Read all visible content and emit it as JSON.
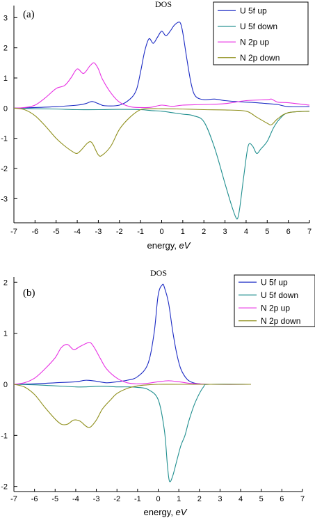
{
  "chart_data": [
    {
      "type": "line",
      "title": "DOS",
      "panel_label": "(a)",
      "xlabel": "energy, ",
      "xlabel_unit": "eV",
      "xlim": [
        -7,
        7
      ],
      "ylim": [
        -3.8,
        3.4
      ],
      "xticks": [
        -7,
        -6,
        -5,
        -4,
        -3,
        -2,
        -1,
        0,
        1,
        2,
        3,
        4,
        5,
        6,
        7
      ],
      "yticks": [
        3,
        2,
        1,
        0,
        -1,
        -2,
        -3
      ],
      "legend_position": "top-right",
      "grid": false,
      "series": [
        {
          "name": "U 5f up",
          "color": "#1c2bc4",
          "x": [
            -7,
            -6,
            -5,
            -4,
            -3.6,
            -3.3,
            -3.0,
            -2.7,
            -2.0,
            -1.5,
            -1.2,
            -1.0,
            -0.8,
            -0.6,
            -0.4,
            -0.2,
            0.0,
            0.2,
            0.4,
            0.6,
            0.8,
            0.9,
            1.0,
            1.2,
            1.4,
            1.6,
            2.0,
            2.5,
            3.0,
            3.5,
            4.0,
            4.5,
            5.0,
            5.5,
            6.0,
            7.0
          ],
          "y": [
            0,
            0.02,
            0.05,
            0.1,
            0.15,
            0.22,
            0.15,
            0.08,
            0.1,
            0.3,
            0.6,
            1.2,
            1.9,
            2.3,
            2.15,
            2.35,
            2.55,
            2.4,
            2.55,
            2.75,
            2.85,
            2.8,
            2.5,
            1.6,
            0.8,
            0.4,
            0.28,
            0.3,
            0.25,
            0.22,
            0.2,
            0.18,
            0.15,
            0.12,
            0.05,
            0.05
          ]
        },
        {
          "name": "U 5f down",
          "color": "#208f8f",
          "x": [
            -7,
            -6,
            -5,
            -4,
            -3,
            -2,
            -1,
            -0.5,
            0,
            0.5,
            1,
            1.5,
            2,
            2.5,
            3,
            3.3,
            3.5,
            3.6,
            3.7,
            3.9,
            4.1,
            4.3,
            4.5,
            4.7,
            5,
            5.3,
            5.6,
            6,
            7
          ],
          "y": [
            0,
            -0.02,
            -0.03,
            -0.05,
            -0.05,
            -0.04,
            -0.05,
            -0.08,
            -0.1,
            -0.15,
            -0.2,
            -0.25,
            -0.45,
            -1.3,
            -2.5,
            -3.2,
            -3.6,
            -3.65,
            -3.3,
            -2.2,
            -1.25,
            -1.25,
            -1.5,
            -1.35,
            -1.1,
            -0.65,
            -0.35,
            -0.15,
            -0.1
          ]
        },
        {
          "name": "N 2p up",
          "color": "#e831e3",
          "x": [
            -7,
            -6.5,
            -6,
            -5.5,
            -5,
            -4.6,
            -4.3,
            -4.0,
            -3.7,
            -3.4,
            -3.2,
            -3.0,
            -2.8,
            -2.4,
            -2.0,
            -1.5,
            -1.0,
            -0.5,
            0,
            0.5,
            1,
            2,
            3,
            4,
            5,
            5.2,
            5.5,
            6,
            7
          ],
          "y": [
            0,
            0.02,
            0.1,
            0.35,
            0.65,
            0.75,
            1.0,
            1.3,
            1.15,
            1.4,
            1.5,
            1.3,
            0.95,
            0.5,
            0.2,
            0.05,
            0.02,
            0.03,
            0.1,
            0.06,
            0.1,
            0.12,
            0.15,
            0.25,
            0.28,
            0.3,
            0.2,
            0.18,
            0.1
          ]
        },
        {
          "name": "N 2p down",
          "color": "#8f8f1c",
          "x": [
            -7,
            -6.5,
            -6,
            -5.5,
            -5.0,
            -4.6,
            -4.2,
            -4.0,
            -3.8,
            -3.5,
            -3.3,
            -3.0,
            -2.8,
            -2.4,
            -2.0,
            -1.5,
            -1.0,
            -0.5,
            0,
            1,
            2,
            3,
            4,
            4.5,
            5.0,
            5.2,
            5.5,
            6,
            7
          ],
          "y": [
            0,
            -0.05,
            -0.25,
            -0.6,
            -1.0,
            -1.25,
            -1.45,
            -1.5,
            -1.38,
            -1.15,
            -1.15,
            -1.55,
            -1.55,
            -1.25,
            -0.7,
            -0.3,
            -0.05,
            -0.02,
            -0.02,
            -0.03,
            -0.05,
            -0.06,
            -0.1,
            -0.3,
            -0.5,
            -0.55,
            -0.35,
            -0.15,
            -0.1
          ]
        }
      ]
    },
    {
      "type": "line",
      "title": "DOS",
      "panel_label": "(b)",
      "xlabel": "energy, ",
      "xlabel_unit": "eV",
      "xlim": [
        -7,
        7
      ],
      "ylim": [
        -2.1,
        2.1
      ],
      "xticks": [
        -7,
        -6,
        -5,
        -4,
        -3,
        -2,
        -1,
        0,
        1,
        2,
        3,
        4,
        5,
        6,
        7
      ],
      "yticks": [
        2,
        1,
        0,
        -1,
        -2
      ],
      "legend_position": "top-right",
      "grid": false,
      "series": [
        {
          "name": "U 5f up",
          "color": "#1c2bc4",
          "x": [
            -7,
            -6,
            -5,
            -4,
            -3.5,
            -3,
            -2.5,
            -2,
            -1.5,
            -1,
            -0.5,
            -0.2,
            0.0,
            0.2,
            0.3,
            0.5,
            0.7,
            0.9,
            1.1,
            1.4,
            1.7,
            2.0,
            2.5,
            4.5
          ],
          "y": [
            0,
            0.01,
            0.03,
            0.05,
            0.08,
            0.06,
            0.03,
            0.05,
            0.08,
            0.15,
            0.4,
            1.0,
            1.75,
            1.95,
            1.9,
            1.6,
            1.05,
            0.6,
            0.3,
            0.1,
            0.03,
            0.01,
            0,
            0
          ]
        },
        {
          "name": "U 5f down",
          "color": "#208f8f",
          "x": [
            -7,
            -6,
            -5,
            -4,
            -3.5,
            -3,
            -2.5,
            -2,
            -1.5,
            -1,
            -0.5,
            0,
            0.3,
            0.45,
            0.55,
            0.7,
            0.9,
            1.1,
            1.3,
            1.5,
            1.8,
            2.2,
            2.5,
            4.5
          ],
          "y": [
            0,
            -0.01,
            -0.03,
            -0.05,
            -0.05,
            -0.04,
            -0.04,
            -0.05,
            -0.05,
            -0.06,
            -0.1,
            -0.3,
            -0.9,
            -1.6,
            -1.9,
            -1.8,
            -1.5,
            -1.2,
            -1.0,
            -0.7,
            -0.35,
            -0.05,
            0,
            0
          ]
        },
        {
          "name": "N 2p up",
          "color": "#e831e3",
          "x": [
            -7,
            -6.5,
            -6,
            -5.5,
            -5,
            -4.7,
            -4.4,
            -4.1,
            -3.8,
            -3.5,
            -3.3,
            -3.1,
            -2.8,
            -2.5,
            -2,
            -1.5,
            -1,
            -0.5,
            0,
            0.5,
            1,
            1.5,
            2,
            2.5,
            4.5
          ],
          "y": [
            0,
            0.03,
            0.12,
            0.3,
            0.52,
            0.72,
            0.78,
            0.68,
            0.74,
            0.8,
            0.82,
            0.72,
            0.5,
            0.3,
            0.12,
            0.03,
            0.01,
            0.02,
            0.05,
            0.07,
            0.05,
            0.02,
            0.01,
            0,
            0
          ]
        },
        {
          "name": "N 2p down",
          "color": "#8f8f1c",
          "x": [
            -7,
            -6.5,
            -6,
            -5.5,
            -5,
            -4.7,
            -4.4,
            -4.1,
            -3.8,
            -3.5,
            -3.3,
            -3.0,
            -2.7,
            -2.3,
            -2.0,
            -1.5,
            -1.0,
            -0.5,
            0,
            1,
            2,
            4.5
          ],
          "y": [
            0,
            -0.05,
            -0.2,
            -0.45,
            -0.68,
            -0.78,
            -0.78,
            -0.7,
            -0.72,
            -0.82,
            -0.84,
            -0.7,
            -0.48,
            -0.3,
            -0.18,
            -0.08,
            -0.03,
            -0.01,
            0,
            0,
            0,
            0
          ]
        }
      ]
    }
  ]
}
